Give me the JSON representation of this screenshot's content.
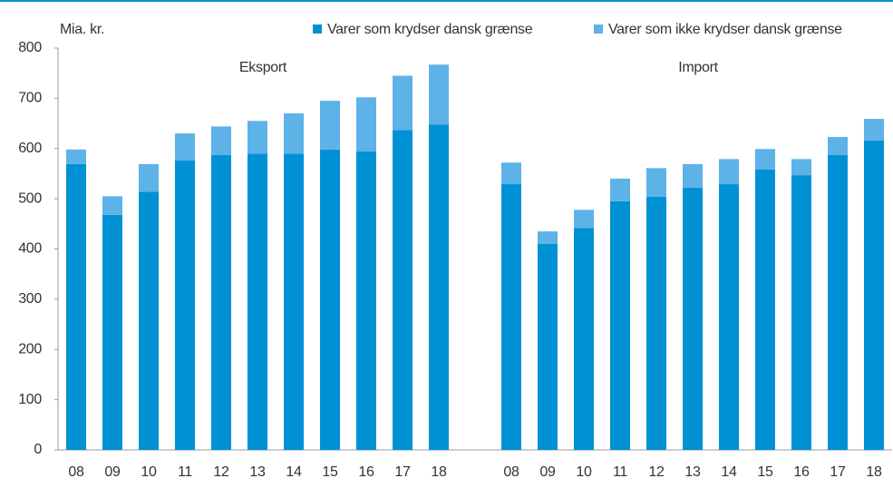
{
  "chart_data": {
    "type": "stacked_bar",
    "y_label": "Mia. kr.",
    "annotations": [
      "Eksport",
      "Import"
    ],
    "categories": [
      "08",
      "09",
      "10",
      "11",
      "12",
      "13",
      "14",
      "15",
      "16",
      "17",
      "18",
      null,
      "08",
      "09",
      "10",
      "11",
      "12",
      "13",
      "14",
      "15",
      "16",
      "17",
      "18"
    ],
    "series": [
      {
        "name": "Varer som krydser dansk grænse",
        "color": "#0091d5",
        "values": [
          569,
          468,
          514,
          576,
          587,
          590,
          590,
          598,
          594,
          637,
          648,
          null,
          529,
          410,
          442,
          495,
          504,
          522,
          529,
          558,
          547,
          587,
          616
        ]
      },
      {
        "name": "Varer som ikke krydser dansk grænse",
        "color": "#5db2e8",
        "values": [
          29,
          37,
          55,
          54,
          57,
          65,
          80,
          97,
          108,
          108,
          119,
          null,
          43,
          25,
          36,
          45,
          57,
          47,
          50,
          41,
          32,
          36,
          43
        ]
      }
    ],
    "ylim": [
      0,
      800
    ],
    "yticks": [
      0,
      100,
      200,
      300,
      400,
      500,
      600,
      700,
      800
    ],
    "grid": false,
    "legend": "top"
  }
}
